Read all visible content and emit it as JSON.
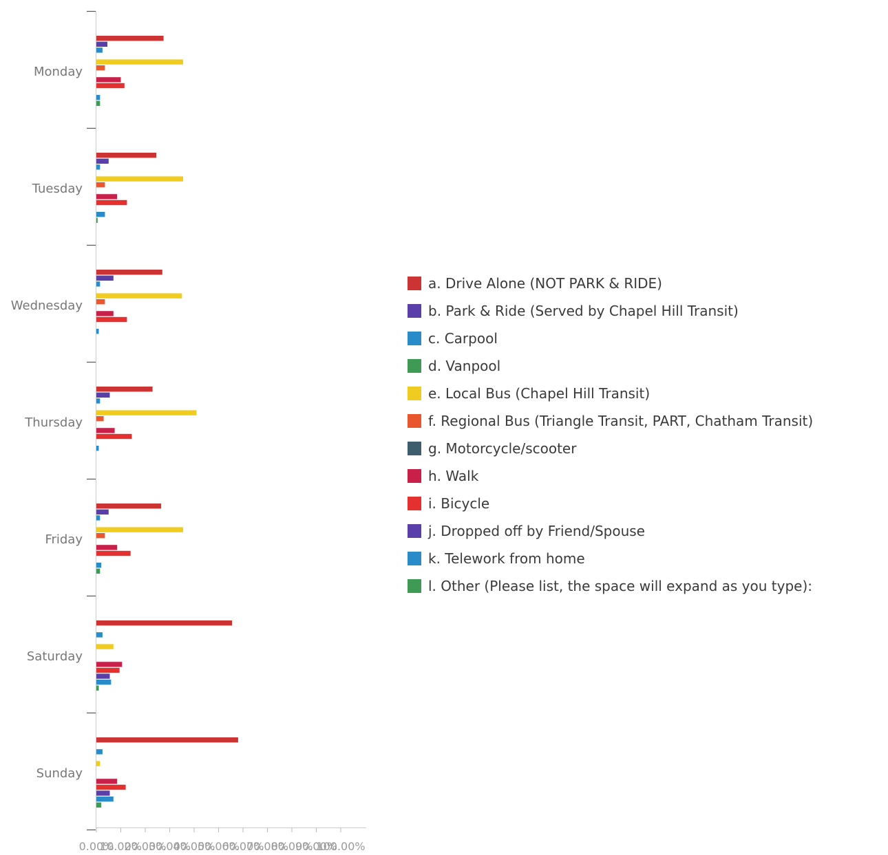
{
  "chart_data": {
    "type": "bar",
    "orientation": "horizontal",
    "categories": [
      "Monday",
      "Tuesday",
      "Wednesday",
      "Thursday",
      "Friday",
      "Saturday",
      "Sunday"
    ],
    "x_ticks": [
      "0.00%",
      "10.00%",
      "20.00%",
      "30.00%",
      "40.00%",
      "50.00%",
      "60.00%",
      "70.00%",
      "80.00%",
      "90.00%",
      "100.00%"
    ],
    "xlim": [
      0,
      100
    ],
    "grid": false,
    "legend_position": "right",
    "series": [
      {
        "name": "a. Drive Alone (NOT PARK & RIDE)",
        "color": "#cc3333",
        "values": [
          27.5,
          24.5,
          27,
          23,
          26.5,
          55.5,
          58
        ]
      },
      {
        "name": "b. Park & Ride (Served by Chapel Hill Transit)",
        "color": "#5a3fa8",
        "values": [
          4.5,
          5,
          7,
          5.5,
          5,
          0,
          0
        ]
      },
      {
        "name": "c. Carpool",
        "color": "#2a8bc9",
        "values": [
          2.5,
          1.5,
          1.5,
          1.5,
          1.5,
          2.5,
          2.5
        ]
      },
      {
        "name": "d. Vanpool",
        "color": "#3e9a55",
        "values": [
          0,
          0,
          0,
          0,
          0,
          0,
          0
        ]
      },
      {
        "name": "e. Local Bus (Chapel Hill Transit)",
        "color": "#f0cc20",
        "values": [
          35.5,
          35.5,
          35,
          41,
          35.5,
          7,
          1.5
        ]
      },
      {
        "name": "f. Regional Bus (Triangle Transit, PART, Chatham Transit)",
        "color": "#e8572e",
        "values": [
          3.5,
          3.5,
          3.5,
          3,
          3.5,
          0,
          0
        ]
      },
      {
        "name": "g. Motorcycle/scooter",
        "color": "#3e5e6e",
        "values": [
          0,
          0,
          0,
          0,
          0,
          0,
          0
        ]
      },
      {
        "name": "h. Walk",
        "color": "#c9204a",
        "values": [
          10,
          8.5,
          7,
          7.5,
          8.5,
          10.5,
          8.5
        ]
      },
      {
        "name": "i. Bicycle",
        "color": "#e53030",
        "values": [
          11.5,
          12.5,
          12.5,
          14.5,
          14,
          9.5,
          12
        ]
      },
      {
        "name": "j. Dropped off by Friend/Spouse",
        "color": "#5a3fa8",
        "values": [
          0,
          0,
          0,
          0,
          0,
          5.5,
          5.5
        ]
      },
      {
        "name": "k. Telework from home",
        "color": "#2a8bc9",
        "values": [
          1.5,
          3.5,
          1,
          1,
          2,
          6,
          7
        ]
      },
      {
        "name": "l. Other (Please list, the space will expand as you type):",
        "color": "#3e9a55",
        "values": [
          1.5,
          0.5,
          0,
          0,
          1.5,
          1,
          2
        ]
      }
    ]
  }
}
